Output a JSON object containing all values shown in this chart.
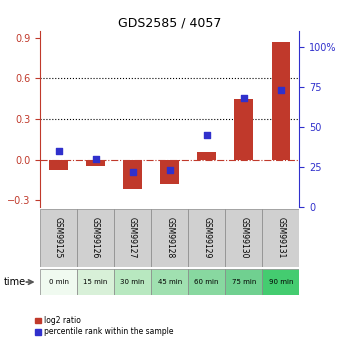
{
  "title": "GDS2585 / 4057",
  "samples": [
    "GSM99125",
    "GSM99126",
    "GSM99127",
    "GSM99128",
    "GSM99129",
    "GSM99130",
    "GSM99131"
  ],
  "time_labels": [
    "0 min",
    "15 min",
    "30 min",
    "45 min",
    "60 min",
    "75 min",
    "90 min"
  ],
  "log2_ratio": [
    -0.08,
    -0.05,
    -0.22,
    -0.18,
    0.06,
    0.45,
    0.87
  ],
  "percentile_rank": [
    35,
    30,
    22,
    23,
    45,
    68,
    73
  ],
  "bar_color": "#c0392b",
  "square_color": "#3030cc",
  "ylim_left": [
    -0.35,
    0.95
  ],
  "ylim_right": [
    0,
    110
  ],
  "yticks_left": [
    -0.3,
    0.0,
    0.3,
    0.6,
    0.9
  ],
  "yticks_right": [
    0,
    25,
    50,
    75,
    100
  ],
  "hline_dotted": [
    0.3,
    0.6
  ],
  "hline_zero_color": "#c0392b",
  "bar_width": 0.5,
  "square_size": 25,
  "time_colors": [
    "#f0faf0",
    "#d8f0d8",
    "#b8e8c0",
    "#a0e0b0",
    "#88d8a0",
    "#70d090",
    "#44cc70"
  ],
  "sample_box_color": "#d0d0d0",
  "title_fontsize": 9,
  "tick_fontsize": 7,
  "label_fontsize": 6.5
}
